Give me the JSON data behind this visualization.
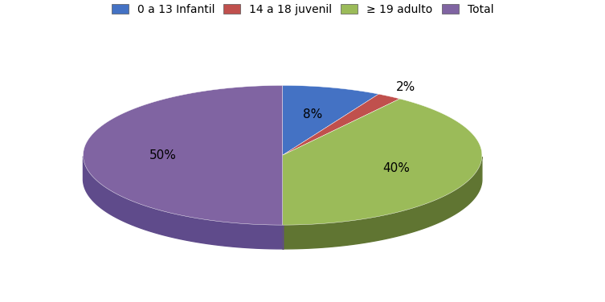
{
  "labels": [
    "0 a 13 Infantil",
    "14 a 18 juvenil",
    "≥ 19 adulto",
    "Total"
  ],
  "values": [
    8,
    2,
    40,
    50
  ],
  "colors": [
    "#4472C4",
    "#C0504D",
    "#9BBB59",
    "#8064A2"
  ],
  "dark_colors": [
    "#2F5597",
    "#943634",
    "#607532",
    "#5F4B8B"
  ],
  "pct_labels": [
    "8%",
    "2%",
    "40%",
    "50%"
  ],
  "legend_labels": [
    "0 a 13 Infantil",
    "14 a 18 juvenil",
    "≥ 19 adulto",
    "Total"
  ],
  "startangle": 90,
  "background_color": "#FFFFFF",
  "figsize": [
    7.53,
    3.76
  ],
  "dpi": 100,
  "depth": 0.12,
  "ellipse_ratio": 0.35
}
